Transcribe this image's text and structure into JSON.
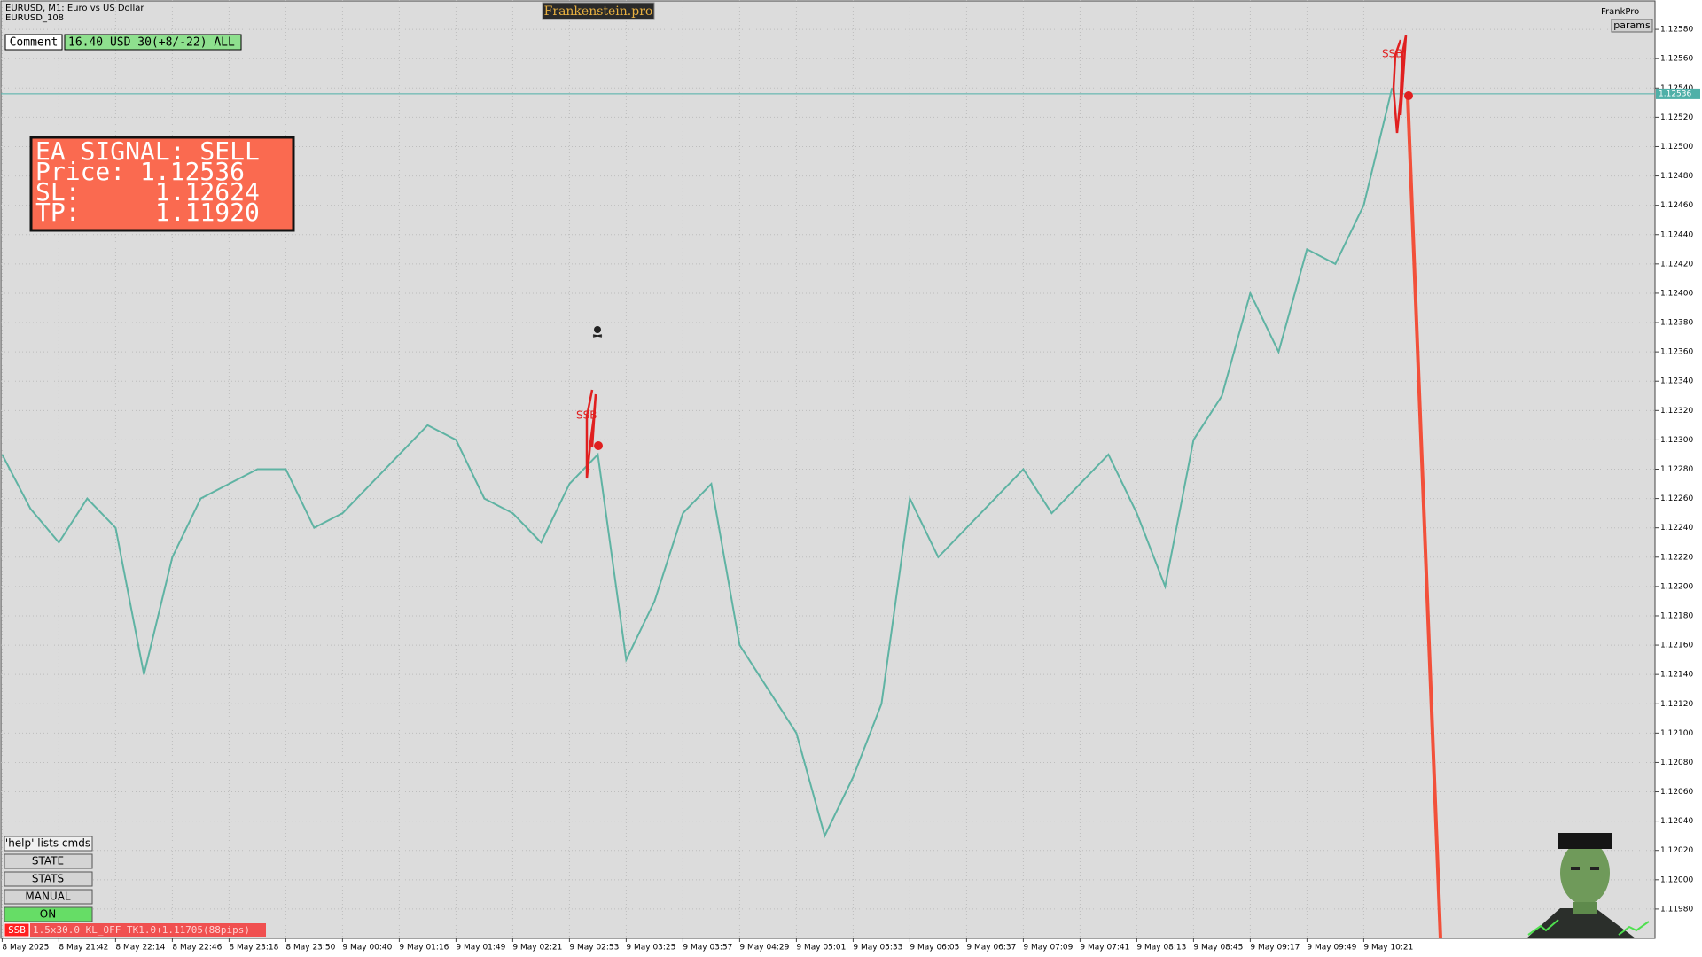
{
  "chart_data": {
    "type": "line",
    "title": "EURUSD, M1:  Euro vs US Dollar",
    "subtitle": "EURUSD_108",
    "categories": [
      "8 May 2025",
      null,
      "8 May 21:42",
      null,
      "8 May 22:14",
      null,
      "8 May 22:46",
      null,
      "8 May 23:18",
      null,
      "8 May 23:50",
      null,
      "9 May 00:40",
      null,
      "9 May 01:16",
      null,
      "9 May 01:49",
      null,
      "9 May 02:21",
      null,
      "9 May 02:53",
      null,
      "9 May 03:25",
      null,
      "9 May 03:57",
      null,
      "9 May 04:29",
      null,
      "9 May 05:01",
      null,
      "9 May 05:33",
      null,
      "9 May 06:05",
      null,
      "9 May 06:37",
      null,
      "9 May 07:09",
      null,
      "9 May 07:41",
      null,
      "9 May 08:13",
      null,
      "9 May 08:45",
      null,
      "9 May 09:17",
      null,
      "9 May 09:49",
      null,
      "9 May 10:21",
      null
    ],
    "series": [
      {
        "name": "EURUSD",
        "color": "#5fb3a3",
        "values": [
          1.1229,
          1.12253,
          1.1223,
          1.1226,
          1.1224,
          1.1214,
          1.1222,
          1.1226,
          1.1227,
          1.1228,
          1.1228,
          1.1224,
          1.1225,
          1.1227,
          1.1229,
          1.1231,
          1.123,
          1.1226,
          1.1225,
          1.1223,
          1.1227,
          1.1229,
          1.1215,
          1.1219,
          1.1225,
          1.1227,
          1.1216,
          1.1213,
          1.121,
          1.1203,
          1.1207,
          1.1212,
          1.1226,
          1.1222,
          1.1224,
          1.1226,
          1.1228,
          1.1225,
          1.1227,
          1.1229,
          1.1225,
          1.122,
          1.123,
          1.1233,
          1.124,
          1.1236,
          1.1243,
          1.1242,
          1.1246,
          1.1254
        ]
      }
    ],
    "ylim": [
      1.1196,
      1.126
    ],
    "yticks": [
      {
        "value": 1.1198,
        "label": "1.11980"
      },
      {
        "value": 1.12,
        "label": "1.12000"
      },
      {
        "value": 1.1202,
        "label": "1.12020"
      },
      {
        "value": 1.1204,
        "label": "1.12040"
      },
      {
        "value": 1.1206,
        "label": "1.12060"
      },
      {
        "value": 1.1208,
        "label": "1.12080"
      },
      {
        "value": 1.121,
        "label": "1.12100"
      },
      {
        "value": 1.1212,
        "label": "1.12120"
      },
      {
        "value": 1.1214,
        "label": "1.12140"
      },
      {
        "value": 1.1216,
        "label": "1.12160"
      },
      {
        "value": 1.1218,
        "label": "1.12180"
      },
      {
        "value": 1.122,
        "label": "1.12200"
      },
      {
        "value": 1.1222,
        "label": "1.12220"
      },
      {
        "value": 1.1224,
        "label": "1.12240"
      },
      {
        "value": 1.1226,
        "label": "1.12260"
      },
      {
        "value": 1.1228,
        "label": "1.12280"
      },
      {
        "value": 1.123,
        "label": "1.12300"
      },
      {
        "value": 1.1232,
        "label": "1.12320"
      },
      {
        "value": 1.1234,
        "label": "1.12340"
      },
      {
        "value": 1.1236,
        "label": "1.12360"
      },
      {
        "value": 1.1238,
        "label": "1.12380"
      },
      {
        "value": 1.124,
        "label": "1.12400"
      },
      {
        "value": 1.1242,
        "label": "1.12420"
      },
      {
        "value": 1.1244,
        "label": "1.12440"
      },
      {
        "value": 1.1246,
        "label": "1.12460"
      },
      {
        "value": 1.1248,
        "label": "1.12480"
      },
      {
        "value": 1.125,
        "label": "1.12500"
      },
      {
        "value": 1.1252,
        "label": "1.12520"
      },
      {
        "value": 1.1254,
        "label": "1.12540"
      },
      {
        "value": 1.1256,
        "label": "1.12560"
      },
      {
        "value": 1.1258,
        "label": "1.12580"
      }
    ],
    "grid": true,
    "price_line": {
      "value": 1.12536,
      "label": "1.12536",
      "color": "#4fb0a8"
    },
    "annotations": [
      "SSB",
      "SSB"
    ]
  },
  "ui": {
    "brand": "Frankenstein.pro",
    "profile": "FrankPro",
    "params": "params",
    "comment_label": "Comment",
    "comment_value": "16.40 USD 30(+8/-22) ALL",
    "signal": [
      "EA SIGNAL: SELL",
      "Price: 1.12536",
      "SL:     1.12624",
      "TP:     1.11920"
    ],
    "buttons": [
      "'help' lists cmds",
      "STATE",
      "STATS",
      "MANUAL",
      "ON"
    ],
    "status_tag": "SSB",
    "status_text": "1.5x30.0 KL_OFF TK1.0+1.11705(88pips)"
  }
}
